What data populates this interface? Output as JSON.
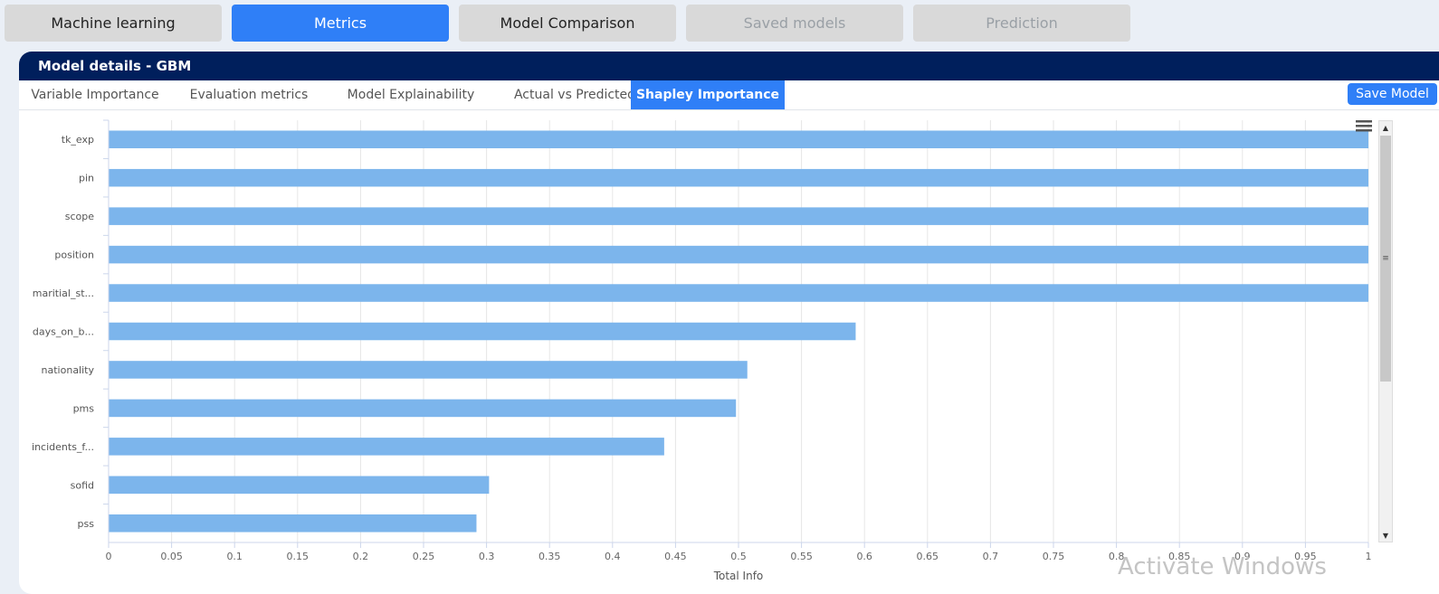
{
  "top_tabs": [
    {
      "label": "Machine learning",
      "state": "normal"
    },
    {
      "label": "Metrics",
      "state": "active"
    },
    {
      "label": "Model Comparison",
      "state": "normal"
    },
    {
      "label": "Saved models",
      "state": "disabled"
    },
    {
      "label": "Prediction",
      "state": "disabled"
    }
  ],
  "panel": {
    "title": "Model details - GBM",
    "subtabs": [
      "Variable Importance",
      "Evaluation metrics",
      "Model Explainability",
      "Actual vs Predicted",
      "Shapley Importance"
    ],
    "active_subtab": "Shapley Importance",
    "save_label": "Save Model"
  },
  "chart_data": {
    "type": "bar",
    "orientation": "horizontal",
    "categories": [
      "tk_exp",
      "pin",
      "scope",
      "position",
      "maritial_st...",
      "days_on_b...",
      "nationality",
      "pms",
      "incidents_f...",
      "sofid",
      "pss"
    ],
    "values": [
      1,
      1,
      1,
      1,
      1,
      0.593,
      0.507,
      0.498,
      0.441,
      0.302,
      0.292
    ],
    "xlabel": "Total Info",
    "xlim": [
      0,
      1
    ],
    "xticks": [
      "0",
      "0.05",
      "0.1",
      "0.15",
      "0.2",
      "0.25",
      "0.3",
      "0.35",
      "0.4",
      "0.45",
      "0.5",
      "0.55",
      "0.6",
      "0.65",
      "0.7",
      "0.75",
      "0.8",
      "0.85",
      "0.9",
      "0.95",
      "1"
    ],
    "grid": true,
    "bar_color": "#7cb5ec"
  },
  "icons": {
    "menu": "hamburger-icon",
    "scroll_up": "arrow-up-icon",
    "scroll_down": "arrow-down-icon"
  },
  "scroll_up_glyph": "▲",
  "scroll_down_glyph": "▼",
  "scroll_thumb_glyph": "≡",
  "watermark": "Activate Windows",
  "colors": {
    "accent": "#2f7ff7",
    "header_bg": "#001f5c",
    "tab_bg": "#d9d9d9",
    "page_bg": "#eaeff6"
  }
}
